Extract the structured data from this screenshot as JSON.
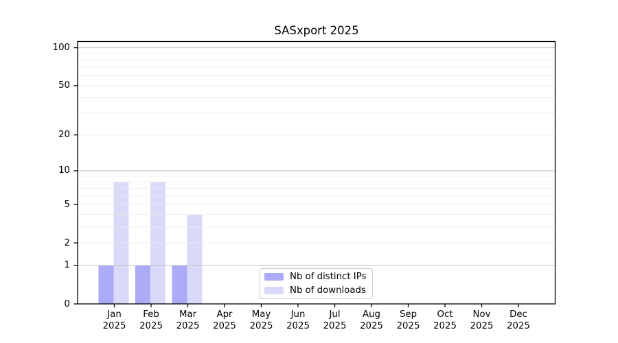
{
  "chart_data": {
    "type": "bar",
    "title": "SASxport 2025",
    "categories": [
      "Jan",
      "Feb",
      "Mar",
      "Apr",
      "May",
      "Jun",
      "Jul",
      "Aug",
      "Sep",
      "Oct",
      "Nov",
      "Dec"
    ],
    "year_label": "2025",
    "series": [
      {
        "name": "Nb of distinct IPs",
        "color": "#ababf7",
        "values": [
          1,
          1,
          1,
          0,
          0,
          0,
          0,
          0,
          0,
          0,
          0,
          0
        ]
      },
      {
        "name": "Nb of downloads",
        "color": "#d9d9f8",
        "values": [
          8,
          8,
          4,
          0,
          0,
          0,
          0,
          0,
          0,
          0,
          0,
          0
        ]
      }
    ],
    "xlabel": "",
    "ylabel": "",
    "yscale": "log1p",
    "ylim": [
      0,
      112
    ],
    "yticks": [
      0,
      1,
      2,
      5,
      10,
      20,
      50,
      100
    ],
    "major_gridlines": [
      1,
      10,
      100
    ],
    "minor_gridlines": [
      2,
      3,
      4,
      5,
      6,
      7,
      8,
      9,
      20,
      30,
      40,
      50,
      60,
      70,
      80,
      90
    ],
    "grid": true,
    "legend_position": "lower center",
    "colors": {
      "major_grid": "#c6c6c6",
      "minor_grid": "#ececec",
      "axis": "#000000",
      "background": "#ffffff"
    }
  }
}
